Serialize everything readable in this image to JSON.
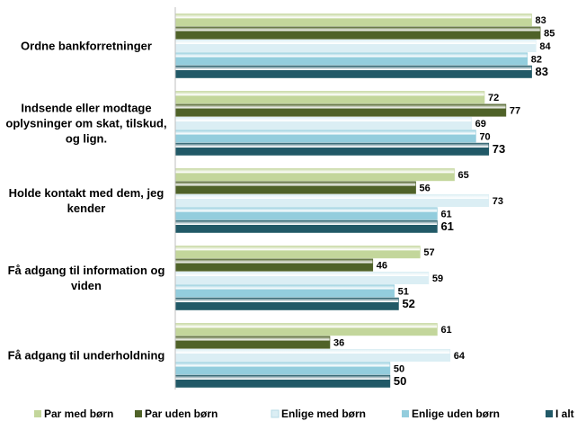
{
  "chart_data": {
    "type": "bar",
    "orientation": "horizontal",
    "categories": [
      "Ordne bankforretninger",
      "Indsende eller modtage oplysninger om skat, tilskud, og lign.",
      "Holde kontakt med dem, jeg kender",
      "Få adgang til information og viden",
      "Få adgang til underholdning"
    ],
    "series": [
      {
        "name": "Par med børn",
        "color": "#c3d69b",
        "values": [
          83,
          72,
          65,
          57,
          61
        ]
      },
      {
        "name": "Par uden børn",
        "color": "#4f6228",
        "values": [
          85,
          77,
          56,
          46,
          36
        ]
      },
      {
        "name": "Enlige med børn",
        "color": "#dbeef4",
        "values": [
          84,
          69,
          73,
          59,
          64
        ]
      },
      {
        "name": "Enlige uden børn",
        "color": "#93cddd",
        "values": [
          82,
          70,
          61,
          51,
          50
        ]
      },
      {
        "name": "I alt",
        "color": "#215967",
        "values": [
          83,
          73,
          61,
          52,
          50
        ]
      }
    ],
    "xlim": [
      0,
      90
    ],
    "legend": "bottom"
  }
}
